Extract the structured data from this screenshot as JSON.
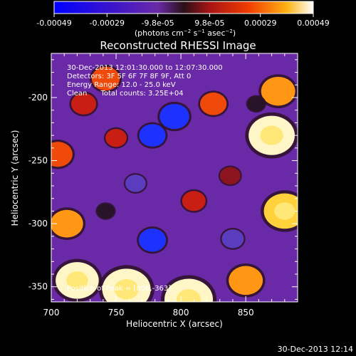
{
  "colorbar": {
    "tick_labels": [
      "-0.00049",
      "-0.00029",
      "-9.8e-05",
      "9.8e-05",
      "0.00029",
      "0.00049"
    ],
    "tick_values": [
      -0.00049,
      -0.00029,
      -9.8e-05,
      9.8e-05,
      0.00029,
      0.00049
    ],
    "range": [
      -0.00049,
      0.00049
    ],
    "units_base": "(photons cm",
    "units_exp1": "−2",
    "units_mid": " s",
    "units_exp2": "−1",
    "units_end": " asec",
    "units_exp3": "−2",
    "units_close": ")"
  },
  "chart_data": {
    "type": "heatmap",
    "title": "Reconstructed RHESSI Image",
    "xlabel": "Heliocentric X (arcsec)",
    "ylabel": "Heliocentric Y (arcsec)",
    "xlim": [
      700,
      890
    ],
    "ylim": [
      -362,
      -165
    ],
    "x_ticks": [
      700,
      750,
      800,
      850
    ],
    "y_ticks": [
      -350,
      -300,
      -250,
      -200
    ],
    "annotations": [
      "30-Dec-2013 12:01:30.000 to 12:07:30.000",
      "Detectors: 3F 5F 6F 7F 8F 9F, Att 0",
      "Energy Range: 12.0 - 25.0 keV",
      "Clean      Total counts: 3.25E+04"
    ],
    "peak_label": "Position of Peak = [806,-363]",
    "peak": [
      806,
      -363
    ],
    "blobs": [
      {
        "x": 758,
        "y": -352,
        "value": 0.00049
      },
      {
        "x": 720,
        "y": -345,
        "value": 0.00042
      },
      {
        "x": 806,
        "y": -360,
        "value": 0.00049
      },
      {
        "x": 870,
        "y": -230,
        "value": 0.00046
      },
      {
        "x": 880,
        "y": -290,
        "value": 0.0004
      },
      {
        "x": 875,
        "y": -195,
        "value": 0.0003
      },
      {
        "x": 850,
        "y": -345,
        "value": 0.0003
      },
      {
        "x": 712,
        "y": -300,
        "value": 0.00028
      },
      {
        "x": 705,
        "y": -245,
        "value": 0.00024
      },
      {
        "x": 742,
        "y": -185,
        "value": 0.00022
      },
      {
        "x": 825,
        "y": -205,
        "value": 0.0002
      },
      {
        "x": 810,
        "y": -282,
        "value": 0.00016
      },
      {
        "x": 750,
        "y": -232,
        "value": 0.00013
      },
      {
        "x": 838,
        "y": -262,
        "value": 0.00012
      },
      {
        "x": 725,
        "y": -205,
        "value": 0.00018
      },
      {
        "x": 778,
        "y": -230,
        "value": -0.0002
      },
      {
        "x": 795,
        "y": -215,
        "value": -0.00024
      },
      {
        "x": 778,
        "y": -313,
        "value": -0.00021
      },
      {
        "x": 840,
        "y": -312,
        "value": -0.00014
      },
      {
        "x": 765,
        "y": -268,
        "value": -0.00012
      },
      {
        "x": 742,
        "y": -290,
        "value": -8e-05
      },
      {
        "x": 858,
        "y": -205,
        "value": -8e-05
      }
    ]
  },
  "footer": {
    "timestamp": "30-Dec-2013 12:14"
  }
}
